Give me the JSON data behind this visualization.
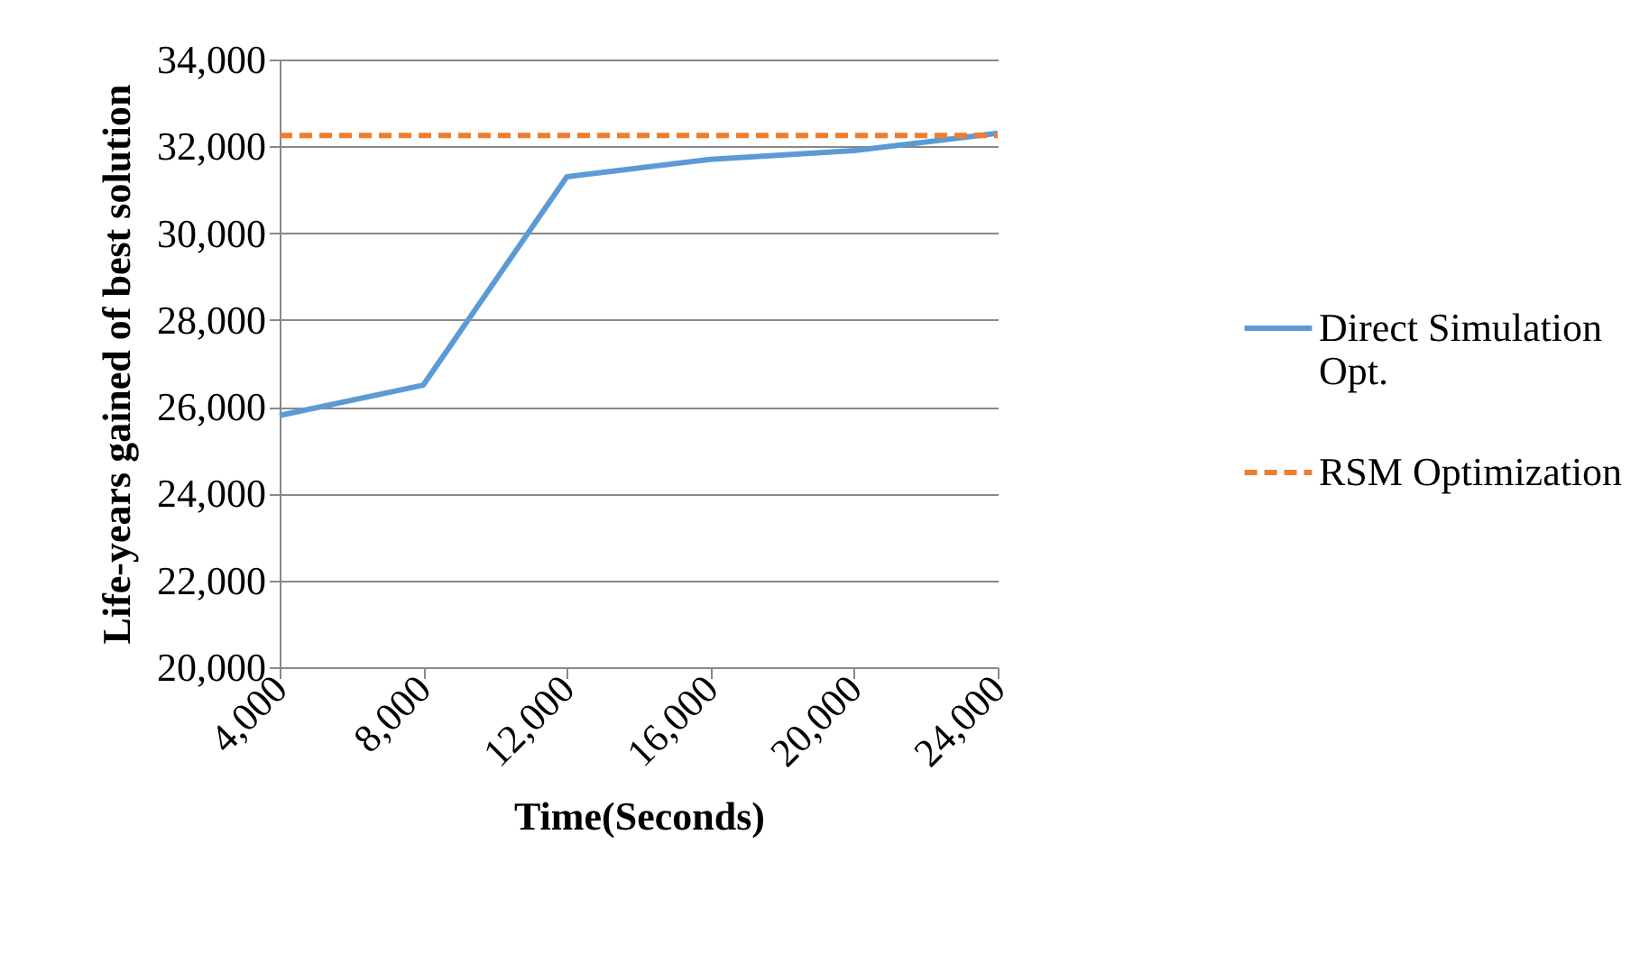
{
  "chart_data": {
    "type": "line",
    "xlabel": "Time(Seconds)",
    "ylabel": "Life-years gained of best solution",
    "x": [
      4000,
      8000,
      12000,
      16000,
      20000,
      24000
    ],
    "series": [
      {
        "name": "Direct Simulation Opt.",
        "color": "#5b9bd5",
        "values": [
          25800,
          26500,
          31300,
          31700,
          31900,
          32300
        ],
        "line_style": "solid"
      },
      {
        "name": "RSM Optimization",
        "color": "#ed7d31",
        "values": [
          32250,
          32250,
          32250,
          32250,
          32250,
          32250
        ],
        "line_style": "dashed"
      }
    ],
    "xlim": [
      4000,
      24000
    ],
    "xticks": [
      {
        "value": 4000,
        "label": "4,000"
      },
      {
        "value": 8000,
        "label": "8,000"
      },
      {
        "value": 12000,
        "label": "12,000"
      },
      {
        "value": 16000,
        "label": "16,000"
      },
      {
        "value": 20000,
        "label": "20,000"
      },
      {
        "value": 24000,
        "label": "24,000"
      }
    ],
    "ylim": [
      20000,
      34000
    ],
    "yticks": [
      {
        "value": 20000,
        "label": "20,000"
      },
      {
        "value": 22000,
        "label": "22,000"
      },
      {
        "value": 24000,
        "label": "24,000"
      },
      {
        "value": 26000,
        "label": "26,000"
      },
      {
        "value": 28000,
        "label": "28,000"
      },
      {
        "value": 30000,
        "label": "30,000"
      },
      {
        "value": 32000,
        "label": "32,000"
      },
      {
        "value": 34000,
        "label": "34,000"
      }
    ],
    "grid": "y",
    "legend": "right",
    "marker": "none"
  }
}
